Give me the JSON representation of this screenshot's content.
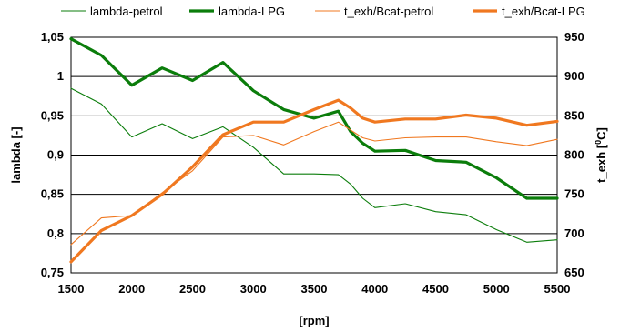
{
  "chart_data": {
    "type": "line",
    "x_unit_label": "[rpm]",
    "y_left_label": "lambda  [-]",
    "y_right_label_base": "t_exh [",
    "y_right_label_sup": "0",
    "y_right_label_end": "C]",
    "xlim": [
      1500,
      5500
    ],
    "ylim_left": [
      0.75,
      1.05
    ],
    "ylim_right": [
      650,
      950
    ],
    "x_ticks": [
      "1500",
      "2000",
      "2500",
      "3000",
      "3500",
      "4000",
      "4500",
      "5000",
      "5500"
    ],
    "y_left_ticks": [
      "1,05",
      "1",
      "0,95",
      "0,9",
      "0,85",
      "0,8",
      "0,75"
    ],
    "y_right_ticks": [
      "950",
      "900",
      "850",
      "800",
      "750",
      "700",
      "650"
    ],
    "grid": "horizontal",
    "legend_position": "top",
    "series": [
      {
        "name": "lambda-petrol",
        "axis": "left",
        "color": "#0b7d0b",
        "weight": "thin",
        "x": [
          1500,
          1750,
          2000,
          2250,
          2500,
          2750,
          3000,
          3250,
          3500,
          3700,
          3800,
          3900,
          4000,
          4250,
          4500,
          4750,
          5000,
          5250,
          5500
        ],
        "y": [
          0.985,
          0.965,
          0.923,
          0.94,
          0.921,
          0.936,
          0.91,
          0.876,
          0.876,
          0.875,
          0.863,
          0.845,
          0.833,
          0.838,
          0.828,
          0.824,
          0.805,
          0.789,
          0.792
        ]
      },
      {
        "name": "lambda-LPG",
        "axis": "left",
        "color": "#0b7d0b",
        "weight": "thick",
        "x": [
          1500,
          1750,
          2000,
          2250,
          2500,
          2750,
          3000,
          3250,
          3500,
          3700,
          3800,
          3900,
          4000,
          4250,
          4500,
          4750,
          5000,
          5250,
          5500
        ],
        "y": [
          1.048,
          1.027,
          0.989,
          1.011,
          0.995,
          1.018,
          0.982,
          0.958,
          0.947,
          0.956,
          0.93,
          0.915,
          0.905,
          0.906,
          0.893,
          0.891,
          0.871,
          0.845,
          0.845
        ]
      },
      {
        "name": "t_exh/Bcat-petrol",
        "axis": "right",
        "color": "#f07820",
        "weight": "thin",
        "x": [
          1500,
          1750,
          2000,
          2250,
          2500,
          2750,
          3000,
          3250,
          3500,
          3700,
          3800,
          3900,
          4000,
          4250,
          4500,
          4750,
          5000,
          5250,
          5500
        ],
        "y": [
          686,
          720,
          723,
          752,
          780,
          823,
          825,
          813,
          830,
          842,
          832,
          822,
          818,
          822,
          823,
          823,
          817,
          812,
          820
        ]
      },
      {
        "name": "t_exh/Bcat-LPG",
        "axis": "right",
        "color": "#f07820",
        "weight": "thick",
        "x": [
          1500,
          1750,
          2000,
          2250,
          2500,
          2750,
          3000,
          3250,
          3500,
          3700,
          3800,
          3900,
          4000,
          4250,
          4500,
          4750,
          5000,
          5250,
          5500
        ],
        "y": [
          664,
          704,
          723,
          750,
          785,
          826,
          842,
          842,
          858,
          870,
          860,
          847,
          842,
          846,
          846,
          851,
          847,
          838,
          843
        ]
      }
    ]
  }
}
